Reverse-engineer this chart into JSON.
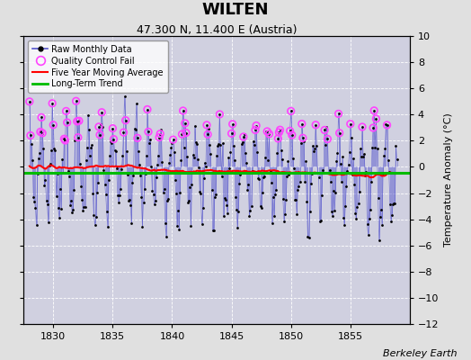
{
  "title": "WILTEN",
  "subtitle": "47.300 N, 11.400 E (Austria)",
  "ylabel": "Temperature Anomaly (°C)",
  "credit": "Berkeley Earth",
  "ylim": [
    -12,
    10
  ],
  "xlim": [
    1827.5,
    1860.0
  ],
  "xticks": [
    1830,
    1835,
    1840,
    1845,
    1850,
    1855
  ],
  "yticks": [
    -12,
    -10,
    -8,
    -6,
    -4,
    -2,
    0,
    2,
    4,
    6,
    8,
    10
  ],
  "bg_color": "#e0e0e0",
  "plot_bg": "#d0d0e0",
  "line_color": "#5555cc",
  "line_alpha": 0.7,
  "dot_color": "black",
  "qc_color": "#ff44ff",
  "ma_color": "red",
  "trend_color": "#00bb00",
  "trend_value": -0.45,
  "seed": 7,
  "n_years": 31,
  "start_year": 1828,
  "months_per_year": 12,
  "title_fontsize": 13,
  "subtitle_fontsize": 9,
  "tick_fontsize": 8,
  "ylabel_fontsize": 8,
  "legend_fontsize": 7,
  "credit_fontsize": 8
}
